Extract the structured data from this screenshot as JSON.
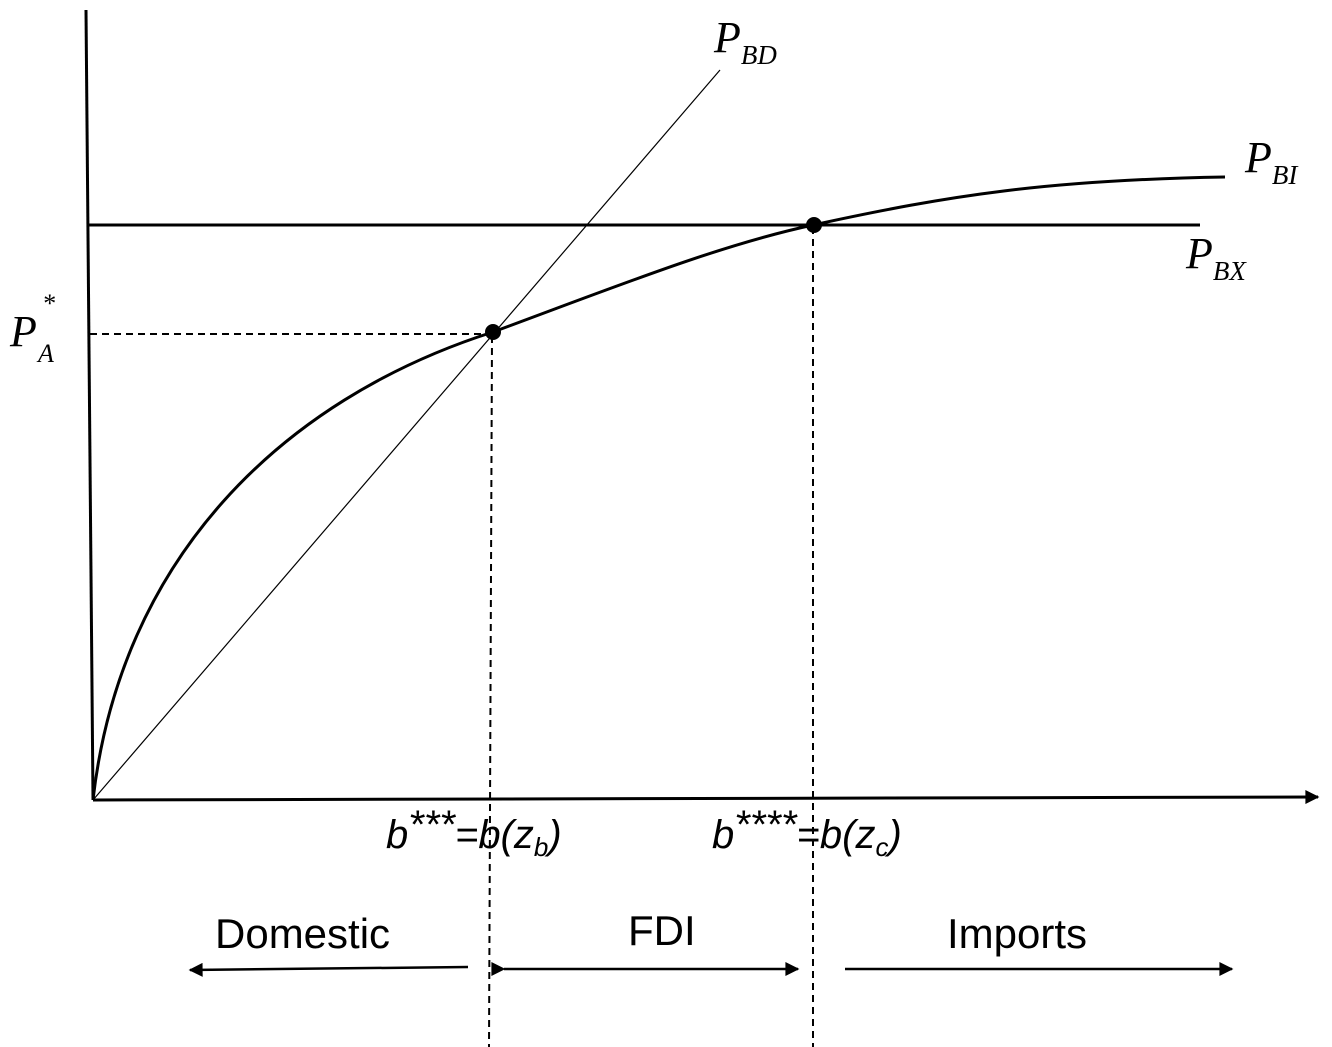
{
  "diagram": {
    "curves": {
      "pbd": {
        "main": "P",
        "sub": "BD"
      },
      "pbi": {
        "main": "P",
        "sub": "BI"
      },
      "pbx": {
        "main": "P",
        "sub": "BX"
      }
    },
    "y_marker": {
      "main": "P",
      "sub": "A",
      "sup": "*"
    },
    "thresholds": {
      "first": {
        "prefix": "b",
        "stars": "***",
        "eq": "=b(",
        "z": "z",
        "zsub": "b",
        "close": ")"
      },
      "second": {
        "prefix": "b",
        "stars": "****",
        "eq": "=b(",
        "z": "z",
        "zsub": "c",
        "close": ")"
      }
    },
    "regions": {
      "domestic": "Domestic",
      "fdi": "FDI",
      "imports": "Imports"
    }
  }
}
